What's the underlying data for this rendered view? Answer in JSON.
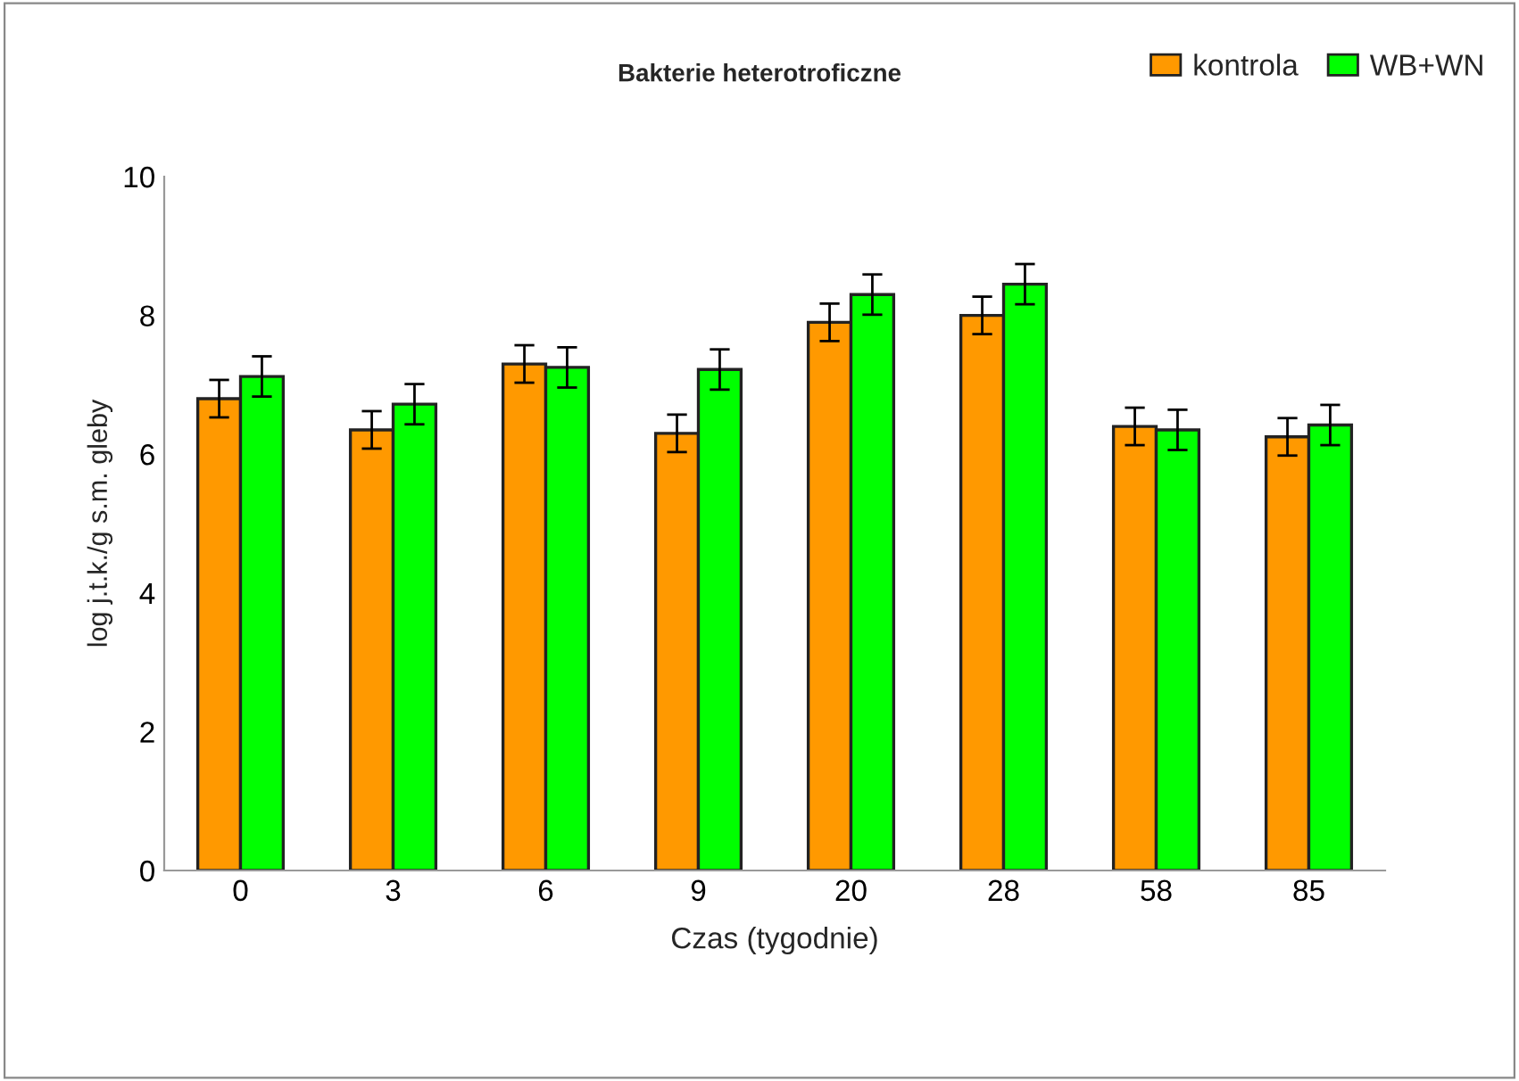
{
  "chart_data": {
    "type": "bar",
    "title": "Bakterie heterotroficzne",
    "xlabel": "Czas (tygodnie)",
    "ylabel": "log j.t.k./g s.m. gleby",
    "categories": [
      "0",
      "3",
      "6",
      "9",
      "20",
      "28",
      "58",
      "85"
    ],
    "series": [
      {
        "name": "kontrola",
        "color": "#ff9900",
        "values": [
          6.8,
          6.35,
          7.3,
          6.3,
          7.9,
          8.0,
          6.4,
          6.25
        ],
        "errors": [
          0.27,
          0.27,
          0.27,
          0.27,
          0.27,
          0.27,
          0.27,
          0.27
        ]
      },
      {
        "name": "WB+WN",
        "color": "#00ff00",
        "values": [
          7.12,
          6.72,
          7.25,
          7.22,
          8.3,
          8.45,
          6.35,
          6.42
        ],
        "errors": [
          0.29,
          0.29,
          0.29,
          0.29,
          0.29,
          0.29,
          0.29,
          0.29
        ]
      }
    ],
    "ylim": [
      0,
      10
    ],
    "yticks": [
      0,
      2,
      4,
      6,
      8,
      10
    ],
    "grid": false,
    "legend": "top right"
  }
}
